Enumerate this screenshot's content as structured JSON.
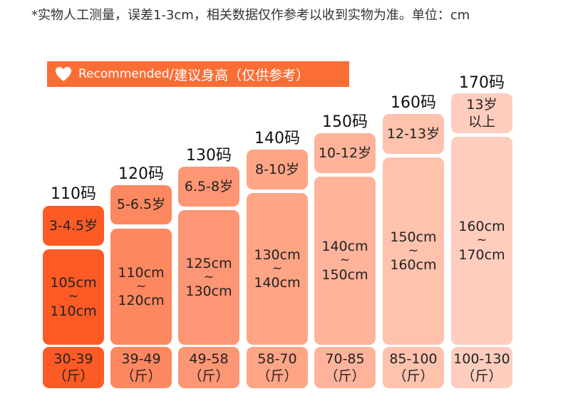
{
  "note": "*实物人工测量，误差1-3cm，相关数据仅作参考以收到实物为准。单位：cm",
  "banner": {
    "icon": "heart-icon",
    "en": "Recommended",
    "sep": "/",
    "zh": "建议身高（仅供参考）",
    "color": "#fa6e36"
  },
  "sizes": [
    {
      "size": "110码",
      "age": "3-4.5岁",
      "height_from": "105cm",
      "height_sep": "~",
      "height_to": "110cm",
      "weight": "30-39",
      "unit": "（斤）",
      "colors": {
        "age": "#fc5b26",
        "height": "#fc5b26",
        "weight": "#fc5b26"
      }
    },
    {
      "size": "120码",
      "age": "5-6.5岁",
      "height_from": "110cm",
      "height_sep": "~",
      "height_to": "120cm",
      "weight": "39-49",
      "unit": "（斤）",
      "colors": {
        "age": "#fd875f",
        "height": "#fd875f",
        "weight": "#fd875f"
      }
    },
    {
      "size": "130码",
      "age": "6.5-8岁",
      "height_from": "125cm",
      "height_sep": "~",
      "height_to": "130cm",
      "weight": "49-58",
      "unit": "（斤）",
      "colors": {
        "age": "#fd9674",
        "height": "#fd9674",
        "weight": "#fd9674"
      }
    },
    {
      "size": "140码",
      "age": "8-10岁",
      "height_from": "130cm",
      "height_sep": "~",
      "height_to": "140cm",
      "weight": "58-70",
      "unit": "（斤）",
      "colors": {
        "age": "#fea586",
        "height": "#fea586",
        "weight": "#fea586"
      }
    },
    {
      "size": "150码",
      "age": "10-12岁",
      "height_from": "140cm",
      "height_sep": "~",
      "height_to": "150cm",
      "weight": "70-85",
      "unit": "（斤）",
      "colors": {
        "age": "#feb39a",
        "height": "#feb39a",
        "weight": "#feb39a"
      }
    },
    {
      "size": "160码",
      "age": "12-13岁",
      "height_from": "150cm",
      "height_sep": "~",
      "height_to": "160cm",
      "weight": "85-100",
      "unit": "（斤）",
      "colors": {
        "age": "#fec2ad",
        "height": "#fec2ad",
        "weight": "#fec2ad"
      }
    },
    {
      "size": "170码",
      "age_line1": "13岁",
      "age_line2": "以上",
      "height_from": "160cm",
      "height_sep": "~",
      "height_to": "170cm",
      "weight": "100-130",
      "unit": "（斤）",
      "colors": {
        "age": "#fecdbd",
        "height": "#fecdbd",
        "weight": "#fecdbd"
      }
    }
  ]
}
